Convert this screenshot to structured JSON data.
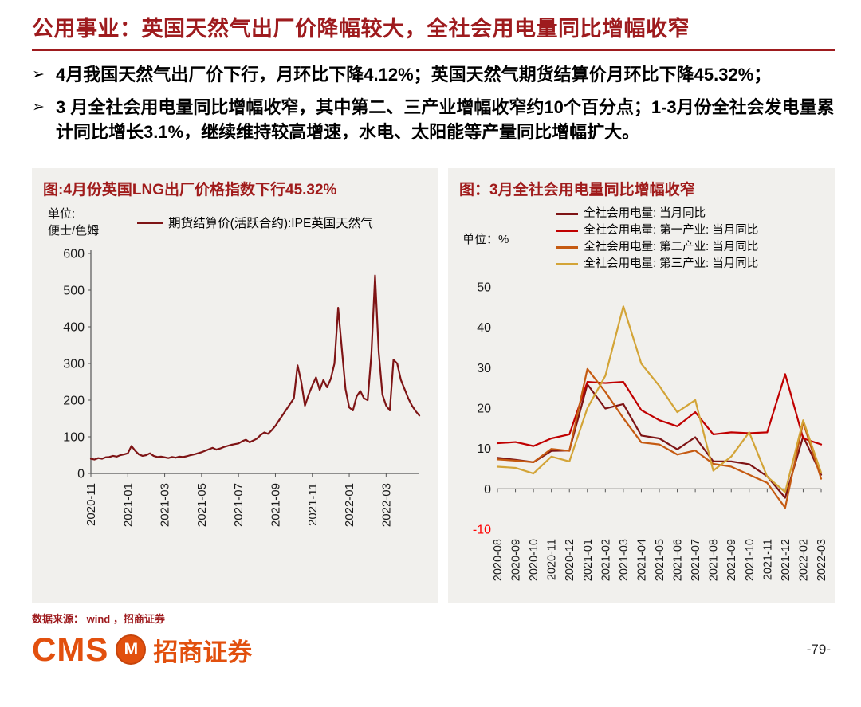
{
  "header": {
    "title": "公用事业：英国天然气出厂价降幅较大，全社会用电量同比增幅收窄"
  },
  "marker": "➢",
  "bullets": [
    {
      "segments": [
        {
          "t": "4",
          "b": true
        },
        {
          "t": "月我国天然气出厂价下行，月环比下降",
          "b": false
        },
        {
          "t": "4.12%",
          "b": true
        },
        {
          "t": "；英国天然气期货结算价月环比下降",
          "b": false
        },
        {
          "t": "45.32%",
          "b": true
        },
        {
          "t": "；",
          "b": false
        }
      ]
    },
    {
      "segments": [
        {
          "t": "3 ",
          "b": true
        },
        {
          "t": "月全社会用电量同比增幅收窄，其中第二、三产业增幅收窄约",
          "b": false
        },
        {
          "t": "10",
          "b": true
        },
        {
          "t": "个百分点；",
          "b": false
        },
        {
          "t": "1-3",
          "b": true
        },
        {
          "t": "月份全社会发电量累计同比增长",
          "b": false
        },
        {
          "t": "3.1%",
          "b": true
        },
        {
          "t": "，继续维持较高增速，水电、太阳能等产量同比增幅扩大。",
          "b": false
        }
      ]
    }
  ],
  "chart_data": [
    {
      "type": "line",
      "title": "图:4月份英国LNG出厂价格指数下行45.32%",
      "unit_lines": [
        "单位:",
        "便士/色姆"
      ],
      "ylim": [
        0,
        600
      ],
      "yticks": [
        600,
        500,
        400,
        300,
        200,
        100,
        0
      ],
      "xtick_labels": [
        "2020-11",
        "2021-01",
        "2021-03",
        "2021-05",
        "2021-07",
        "2021-09",
        "2021-11",
        "2022-01",
        "2022-03"
      ],
      "xtick_indices": [
        0,
        10,
        20,
        30,
        40,
        50,
        60,
        70,
        80
      ],
      "series": [
        {
          "name": "期货结算价(活跃合约):IPE英国天然气",
          "color": "#7E1415",
          "values": [
            40,
            38,
            42,
            40,
            44,
            45,
            48,
            46,
            50,
            52,
            55,
            75,
            62,
            52,
            48,
            50,
            55,
            48,
            45,
            46,
            44,
            42,
            45,
            43,
            46,
            45,
            47,
            50,
            52,
            55,
            58,
            62,
            66,
            70,
            65,
            68,
            72,
            75,
            78,
            80,
            82,
            88,
            92,
            85,
            90,
            95,
            105,
            112,
            108,
            118,
            130,
            145,
            160,
            175,
            190,
            205,
            295,
            250,
            185,
            215,
            240,
            262,
            228,
            255,
            235,
            258,
            300,
            452,
            340,
            230,
            180,
            172,
            210,
            225,
            205,
            200,
            325,
            540,
            330,
            215,
            185,
            172,
            310,
            300,
            255,
            230,
            205,
            185,
            170,
            158
          ]
        }
      ]
    },
    {
      "type": "line",
      "title": "图：3月全社会用电量同比增幅收窄",
      "unit_lines": [
        "单位：%"
      ],
      "ylim": [
        -10,
        50
      ],
      "yticks": [
        50,
        40,
        30,
        20,
        10,
        0,
        -10
      ],
      "negative_tick_color": "#FF0000",
      "categories": [
        "2020-08",
        "2020-09",
        "2020-10",
        "2020-11",
        "2020-12",
        "2021-01",
        "2021-02",
        "2021-03",
        "2021-04",
        "2021-05",
        "2021-06",
        "2021-07",
        "2021-08",
        "2021-09",
        "2021-10",
        "2021-11",
        "2021-12",
        "2022-02",
        "2022-03"
      ],
      "series": [
        {
          "name": "全社会用电量: 当月同比",
          "color": "#7E1415",
          "values": [
            7.7,
            7.2,
            6.6,
            9.4,
            9.5,
            25.9,
            19.9,
            21.0,
            13.2,
            12.5,
            9.8,
            12.8,
            6.8,
            6.8,
            6.1,
            3.1,
            -2.2,
            13.0,
            3.5
          ]
        },
        {
          "name": "全社会用电量: 第一产业: 当月同比",
          "color": "#C00000",
          "values": [
            11.3,
            11.6,
            10.6,
            12.5,
            13.5,
            26.5,
            26.2,
            26.5,
            19.5,
            17.0,
            15.5,
            19.0,
            13.5,
            14.0,
            13.8,
            14.0,
            28.4,
            12.5,
            11.0
          ]
        },
        {
          "name": "全社会用电量: 第二产业: 当月同比",
          "color": "#C55A11",
          "values": [
            7.3,
            7.0,
            6.6,
            9.9,
            9.4,
            29.7,
            24.0,
            17.5,
            11.5,
            11.0,
            8.5,
            9.5,
            6.2,
            5.5,
            3.5,
            1.5,
            -4.7,
            16.5,
            2.5
          ]
        },
        {
          "name": "全社会用电量: 第三产业: 当月同比",
          "color": "#D3A437",
          "values": [
            5.5,
            5.2,
            3.8,
            8.0,
            6.8,
            20.0,
            28.0,
            45.2,
            31.0,
            25.5,
            19.0,
            22.0,
            4.5,
            8.0,
            14.0,
            3.0,
            -0.8,
            17.0,
            4.0
          ]
        }
      ]
    }
  ],
  "footer": {
    "source": "数据来源： wind ，招商证券"
  },
  "branding": {
    "cms": "CMS",
    "emblem": "M",
    "name": "招商证券",
    "page": "-79-"
  }
}
